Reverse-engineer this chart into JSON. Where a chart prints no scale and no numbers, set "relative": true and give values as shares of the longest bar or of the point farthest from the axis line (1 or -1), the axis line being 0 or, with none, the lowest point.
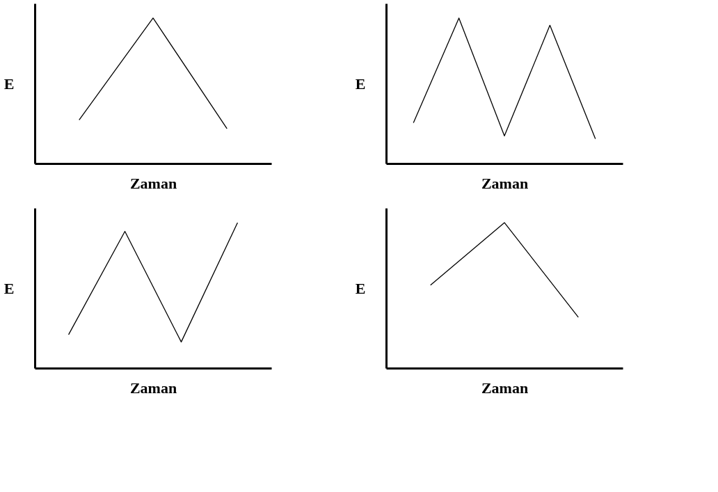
{
  "chart_data": [
    {
      "type": "line",
      "relative": true,
      "xlabel": "Zaman",
      "ylabel": "E",
      "categories": [
        null,
        null,
        null
      ],
      "tick_labels": false,
      "grid": false,
      "marker": "none",
      "line_style": "solid",
      "series": [
        {
          "color": "#000000",
          "values": [
            0.3,
            1,
            0.24
          ]
        }
      ]
    },
    {
      "type": "line",
      "relative": true,
      "xlabel": "Zaman",
      "ylabel": "E",
      "categories": [
        null,
        null,
        null,
        null,
        null
      ],
      "tick_labels": false,
      "grid": false,
      "marker": "none",
      "line_style": "solid",
      "series": [
        {
          "color": "#000000",
          "values": [
            0.28,
            1,
            0.19,
            0.95,
            0.17
          ]
        }
      ]
    },
    {
      "type": "line",
      "relative": true,
      "xlabel": "Zaman",
      "ylabel": "E",
      "categories": [
        null,
        null,
        null,
        null
      ],
      "tick_labels": false,
      "grid": false,
      "marker": "none",
      "line_style": "solid",
      "series": [
        {
          "color": "#000000",
          "values": [
            0.23,
            0.94,
            0.18,
            1
          ]
        }
      ]
    },
    {
      "type": "line",
      "relative": true,
      "xlabel": "Zaman",
      "ylabel": "E",
      "categories": [
        null,
        null,
        null
      ],
      "tick_labels": false,
      "grid": false,
      "marker": "none",
      "line_style": "solid",
      "series": [
        {
          "color": "#000000",
          "values": [
            0.57,
            1,
            0.35
          ]
        }
      ]
    }
  ]
}
